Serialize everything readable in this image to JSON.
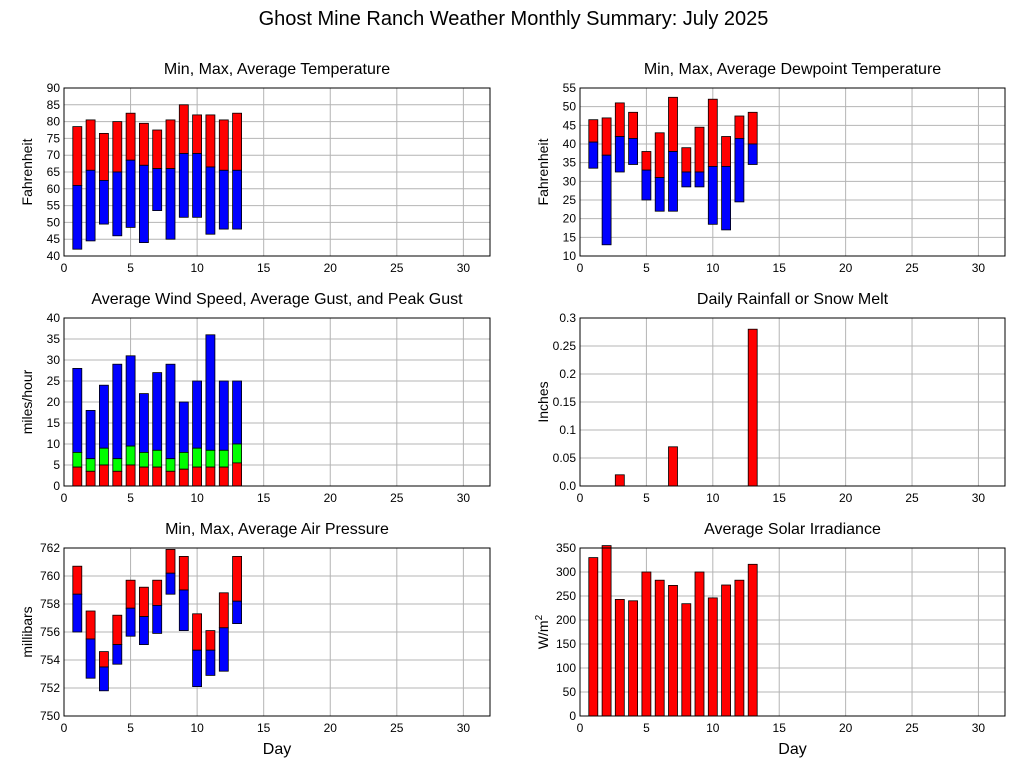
{
  "page": {
    "title": "Ghost Mine Ranch Weather Monthly Summary: July 2025"
  },
  "colors": {
    "red": "#ff0000",
    "blue": "#0000ff",
    "green": "#00ff00",
    "grid": "#b4b4b4"
  },
  "chart_data": [
    {
      "id": "temperature",
      "type": "bar",
      "title": "Min, Max, Average Temperature",
      "xlabel": "",
      "ylabel": "Fahrenheit",
      "xlim": [
        0,
        32
      ],
      "ylim": [
        40,
        90
      ],
      "xticks": [
        0,
        5,
        10,
        15,
        20,
        25,
        30
      ],
      "yticks": [
        40,
        45,
        50,
        55,
        60,
        65,
        70,
        75,
        80,
        85,
        90
      ],
      "x": [
        1,
        2,
        3,
        4,
        5,
        6,
        7,
        8,
        9,
        10,
        11,
        12,
        13
      ],
      "min": [
        42,
        44.5,
        49.5,
        46,
        48.5,
        44,
        53.5,
        45,
        51.5,
        51.5,
        46.5,
        48,
        48
      ],
      "avg": [
        61,
        65.5,
        62.5,
        65,
        68.5,
        67,
        66,
        66,
        70.5,
        70.5,
        66.5,
        65.5,
        65.5
      ],
      "max": [
        78.5,
        80.5,
        76.5,
        80,
        82.5,
        79.5,
        77.5,
        80.5,
        85,
        82,
        82,
        80.5,
        82.5
      ]
    },
    {
      "id": "dewpoint",
      "type": "bar",
      "title": "Min, Max, Average Dewpoint Temperature",
      "xlabel": "",
      "ylabel": "Fahrenheit",
      "xlim": [
        0,
        32
      ],
      "ylim": [
        10,
        55
      ],
      "xticks": [
        0,
        5,
        10,
        15,
        20,
        25,
        30
      ],
      "yticks": [
        10,
        15,
        20,
        25,
        30,
        35,
        40,
        45,
        50,
        55
      ],
      "x": [
        1,
        2,
        3,
        4,
        5,
        6,
        7,
        8,
        9,
        10,
        11,
        12,
        13
      ],
      "min": [
        33.5,
        13,
        32.5,
        34.5,
        25,
        22,
        22,
        28.5,
        28.5,
        18.5,
        17,
        24.5,
        34.5
      ],
      "avg": [
        40.5,
        37,
        42,
        41.5,
        33,
        31,
        38,
        32.5,
        32.5,
        34,
        34,
        41.5,
        40
      ],
      "max": [
        46.5,
        47,
        51,
        48.5,
        38,
        43,
        52.5,
        39,
        44.5,
        52,
        42,
        47.5,
        48.5
      ]
    },
    {
      "id": "wind",
      "type": "bar",
      "title": "Average Wind Speed, Average Gust, and Peak Gust",
      "xlabel": "",
      "ylabel": "miles/hour",
      "xlim": [
        0,
        32
      ],
      "ylim": [
        0,
        40
      ],
      "xticks": [
        0,
        5,
        10,
        15,
        20,
        25,
        30
      ],
      "yticks": [
        0,
        5,
        10,
        15,
        20,
        25,
        30,
        35,
        40
      ],
      "x": [
        1,
        2,
        3,
        4,
        5,
        6,
        7,
        8,
        9,
        10,
        11,
        12,
        13
      ],
      "avg_speed": [
        4.5,
        3.5,
        5,
        3.5,
        5,
        4.5,
        4.5,
        3.5,
        4,
        4.5,
        4.5,
        4.5,
        5.5
      ],
      "avg_gust": [
        8,
        6.5,
        9,
        6.5,
        9.5,
        8,
        8.5,
        6.5,
        8,
        9,
        8.5,
        8.5,
        10
      ],
      "peak_gust": [
        28,
        18,
        24,
        29,
        31,
        22,
        27,
        29,
        20,
        25,
        36,
        25,
        25
      ]
    },
    {
      "id": "rainfall",
      "type": "bar",
      "title": "Daily Rainfall or Snow Melt",
      "xlabel": "",
      "ylabel": "Inches",
      "xlim": [
        0,
        32
      ],
      "ylim": [
        0,
        0.3
      ],
      "xticks": [
        0,
        5,
        10,
        15,
        20,
        25,
        30
      ],
      "yticks": [
        "0.0",
        "0.05",
        "0.1",
        "0.15",
        "0.2",
        "0.25",
        "0.3"
      ],
      "x": [
        3,
        7,
        13
      ],
      "values": [
        0.02,
        0.07,
        0.28
      ]
    },
    {
      "id": "pressure",
      "type": "bar",
      "title": "Min, Max, Average Air Pressure",
      "xlabel": "Day",
      "ylabel": "millibars",
      "xlim": [
        0,
        32
      ],
      "ylim": [
        750,
        762
      ],
      "xticks": [
        0,
        5,
        10,
        15,
        20,
        25,
        30
      ],
      "yticks": [
        750,
        752,
        754,
        756,
        758,
        760,
        762
      ],
      "x": [
        1,
        2,
        3,
        4,
        5,
        6,
        7,
        8,
        9,
        10,
        11,
        12,
        13
      ],
      "min": [
        756,
        752.7,
        751.8,
        753.7,
        755.7,
        755.1,
        755.9,
        758.7,
        756.1,
        752.1,
        752.9,
        753.2,
        756.6
      ],
      "avg": [
        758.7,
        755.5,
        753.5,
        755.1,
        757.7,
        757.1,
        757.9,
        760.2,
        759,
        754.7,
        754.7,
        756.3,
        758.2
      ],
      "max": [
        760.7,
        757.5,
        754.6,
        757.2,
        759.7,
        759.2,
        759.7,
        761.9,
        761.4,
        757.3,
        756.1,
        758.8,
        761.4
      ]
    },
    {
      "id": "solar",
      "type": "bar",
      "title": "Average Solar Irradiance",
      "xlabel": "Day",
      "ylabel": "W/m",
      "ylabel_sup": "2",
      "xlim": [
        0,
        32
      ],
      "ylim": [
        0,
        350
      ],
      "xticks": [
        0,
        5,
        10,
        15,
        20,
        25,
        30
      ],
      "yticks": [
        0,
        50,
        100,
        150,
        200,
        250,
        300,
        350
      ],
      "x": [
        1,
        2,
        3,
        4,
        5,
        6,
        7,
        8,
        9,
        10,
        11,
        12,
        13
      ],
      "values": [
        330,
        355,
        243,
        240,
        300,
        283,
        272,
        234,
        300,
        246,
        273,
        283,
        316
      ]
    }
  ]
}
